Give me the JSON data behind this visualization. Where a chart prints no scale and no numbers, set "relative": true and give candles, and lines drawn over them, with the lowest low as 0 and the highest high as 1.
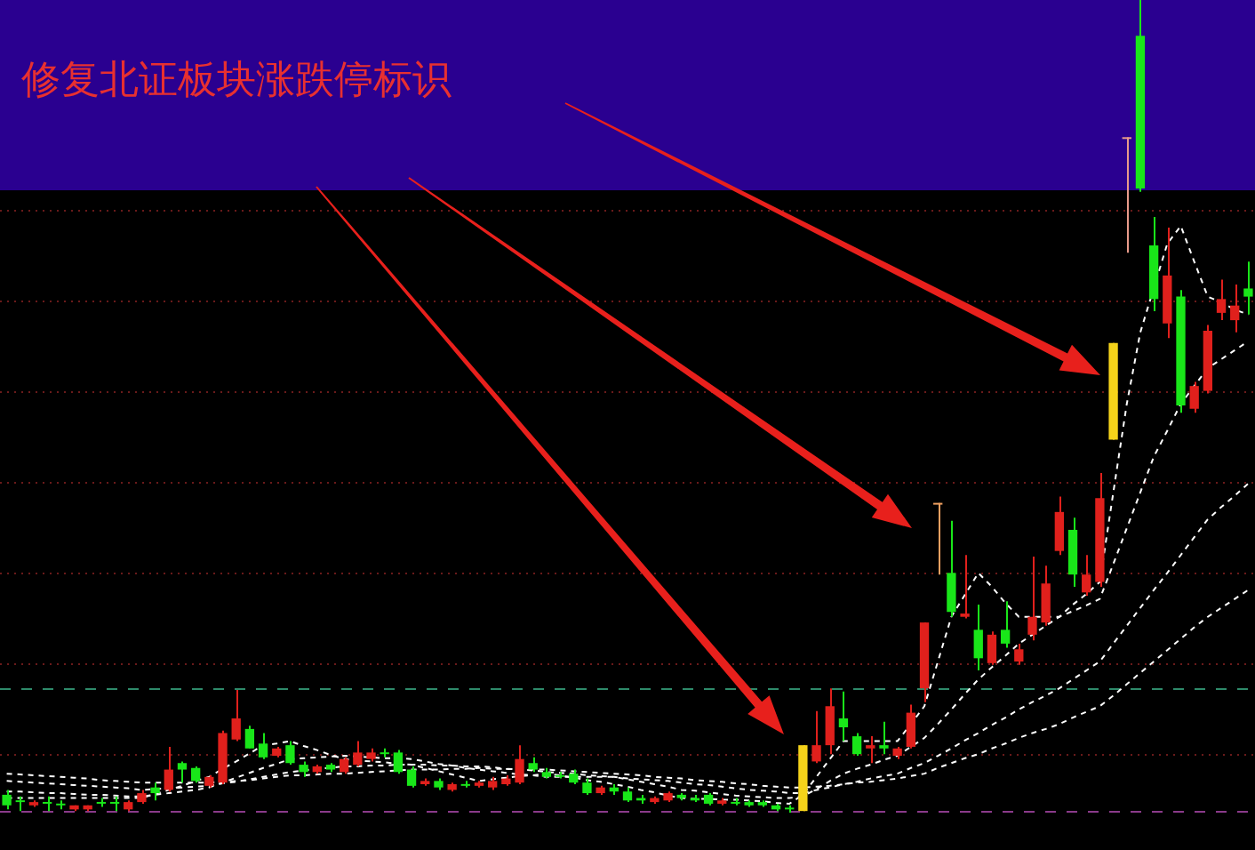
{
  "chart_data": {
    "type": "candlestick",
    "title": "修复北证板块涨跌停标识",
    "relative": true,
    "marker": "none",
    "categories": [
      null,
      null,
      null,
      null,
      null,
      null,
      null,
      null,
      null,
      null,
      null,
      null,
      null,
      null,
      null,
      null,
      null,
      null,
      null,
      null,
      null,
      null,
      null,
      null,
      null,
      null,
      null,
      null,
      null,
      null,
      null,
      null,
      null,
      null,
      null,
      null,
      null,
      null,
      null,
      null,
      null,
      null,
      null,
      null,
      null,
      null,
      null,
      null,
      null,
      null,
      null,
      null,
      null,
      null,
      null,
      null,
      null,
      null,
      null,
      null,
      null,
      null,
      null,
      null,
      null,
      null,
      null,
      null,
      null,
      null,
      null,
      null,
      null,
      null,
      null,
      null,
      null,
      null,
      null,
      null,
      null,
      null,
      null,
      null,
      null,
      null,
      null,
      null,
      null,
      null,
      null,
      null,
      null
    ],
    "ohlc": [
      [
        0.022,
        0.028,
        0.004,
        0.009
      ],
      [
        0.015,
        0.02,
        0.002,
        0.013
      ],
      [
        0.009,
        0.015,
        0.007,
        0.013
      ],
      [
        0.013,
        0.02,
        0.002,
        0.011
      ],
      [
        0.011,
        0.015,
        0.004,
        0.009
      ],
      [
        0.004,
        0.009,
        0.002,
        0.009
      ],
      [
        0.004,
        0.009,
        0.002,
        0.009
      ],
      [
        0.013,
        0.018,
        0.007,
        0.011
      ],
      [
        0.013,
        0.02,
        0.002,
        0.011
      ],
      [
        0.004,
        0.015,
        0.002,
        0.013
      ],
      [
        0.013,
        0.028,
        0.011,
        0.024
      ],
      [
        0.031,
        0.037,
        0.015,
        0.024
      ],
      [
        0.028,
        0.081,
        0.026,
        0.053
      ],
      [
        0.061,
        0.063,
        0.037,
        0.053
      ],
      [
        0.055,
        0.057,
        0.037,
        0.039
      ],
      [
        0.033,
        0.046,
        0.031,
        0.044
      ],
      [
        0.037,
        0.101,
        0.035,
        0.098
      ],
      [
        0.09,
        0.151,
        0.088,
        0.116
      ],
      [
        0.103,
        0.107,
        0.079,
        0.079
      ],
      [
        0.085,
        0.098,
        0.066,
        0.068
      ],
      [
        0.07,
        0.081,
        0.068,
        0.079
      ],
      [
        0.083,
        0.088,
        0.059,
        0.061
      ],
      [
        0.059,
        0.063,
        0.044,
        0.05
      ],
      [
        0.05,
        0.059,
        0.048,
        0.057
      ],
      [
        0.059,
        0.061,
        0.05,
        0.053
      ],
      [
        0.05,
        0.068,
        0.048,
        0.066
      ],
      [
        0.059,
        0.088,
        0.057,
        0.074
      ],
      [
        0.066,
        0.079,
        0.063,
        0.074
      ],
      [
        0.074,
        0.079,
        0.068,
        0.072
      ],
      [
        0.074,
        0.077,
        0.048,
        0.05
      ],
      [
        0.053,
        0.057,
        0.031,
        0.033
      ],
      [
        0.035,
        0.042,
        0.033,
        0.039
      ],
      [
        0.039,
        0.042,
        0.028,
        0.031
      ],
      [
        0.028,
        0.037,
        0.026,
        0.035
      ],
      [
        0.035,
        0.039,
        0.031,
        0.033
      ],
      [
        0.033,
        0.039,
        0.031,
        0.037
      ],
      [
        0.031,
        0.044,
        0.028,
        0.039
      ],
      [
        0.035,
        0.046,
        0.033,
        0.042
      ],
      [
        0.037,
        0.083,
        0.035,
        0.066
      ],
      [
        0.061,
        0.068,
        0.05,
        0.053
      ],
      [
        0.05,
        0.055,
        0.042,
        0.044
      ],
      [
        0.046,
        0.05,
        0.042,
        0.044
      ],
      [
        0.048,
        0.053,
        0.035,
        0.037
      ],
      [
        0.037,
        0.042,
        0.022,
        0.024
      ],
      [
        0.024,
        0.033,
        0.022,
        0.031
      ],
      [
        0.031,
        0.035,
        0.022,
        0.026
      ],
      [
        0.026,
        0.031,
        0.013,
        0.015
      ],
      [
        0.018,
        0.022,
        0.011,
        0.015
      ],
      [
        0.013,
        0.02,
        0.011,
        0.018
      ],
      [
        0.015,
        0.026,
        0.013,
        0.024
      ],
      [
        0.022,
        0.024,
        0.015,
        0.018
      ],
      [
        0.018,
        0.022,
        0.013,
        0.015
      ],
      [
        0.022,
        0.024,
        0.009,
        0.011
      ],
      [
        0.011,
        0.018,
        0.009,
        0.015
      ],
      [
        0.013,
        0.018,
        0.009,
        0.011
      ],
      [
        0.013,
        0.015,
        0.007,
        0.009
      ],
      [
        0.013,
        0.015,
        0.007,
        0.009
      ],
      [
        0.009,
        0.011,
        0.002,
        0.004
      ],
      [
        0.004,
        0.009,
        0,
        0.004
      ],
      [
        0.002,
        0.083,
        0.002,
        0.083
      ],
      [
        0.063,
        0.125,
        0.061,
        0.083
      ],
      [
        0.083,
        0.153,
        0.072,
        0.131
      ],
      [
        0.116,
        0.149,
        0.088,
        0.105
      ],
      [
        0.094,
        0.098,
        0.07,
        0.072
      ],
      [
        0.079,
        0.094,
        0.061,
        0.083
      ],
      [
        0.083,
        0.112,
        0.072,
        0.079
      ],
      [
        0.07,
        0.081,
        0.066,
        0.079
      ],
      [
        0.081,
        0.133,
        0.079,
        0.123
      ],
      [
        0.153,
        0.234,
        0.136,
        0.234
      ],
      [
        0.379,
        0.381,
        0.293,
        0.381
      ],
      [
        0.295,
        0.359,
        0.241,
        0.247
      ],
      [
        0.241,
        0.317,
        0.239,
        0.245
      ],
      [
        0.225,
        0.256,
        0.175,
        0.19
      ],
      [
        0.184,
        0.223,
        0.182,
        0.219
      ],
      [
        0.225,
        0.26,
        0.203,
        0.208
      ],
      [
        0.186,
        0.208,
        0.182,
        0.201
      ],
      [
        0.219,
        0.315,
        0.212,
        0.241
      ],
      [
        0.234,
        0.304,
        0.23,
        0.282
      ],
      [
        0.322,
        0.389,
        0.317,
        0.37
      ],
      [
        0.348,
        0.363,
        0.278,
        0.293
      ],
      [
        0.271,
        0.317,
        0.267,
        0.293
      ],
      [
        0.284,
        0.418,
        0.278,
        0.387
      ],
      [
        0.459,
        0.578,
        0.459,
        0.578
      ],
      [
        0.829,
        0.831,
        0.689,
        0.831
      ],
      [
        0.956,
        1,
        0.764,
        0.768
      ],
      [
        0.698,
        0.733,
        0.617,
        0.632
      ],
      [
        0.602,
        0.72,
        0.584,
        0.661
      ],
      [
        0.635,
        0.643,
        0.492,
        0.501
      ],
      [
        0.497,
        0.53,
        0.492,
        0.525
      ],
      [
        0.519,
        0.6,
        0.516,
        0.593
      ],
      [
        0.615,
        0.656,
        0.606,
        0.632
      ],
      [
        0.606,
        0.65,
        0.591,
        0.624
      ],
      [
        0.645,
        0.678,
        0.613,
        0.635
      ]
    ],
    "colors": [
      "#19e619",
      "#19e619",
      "#e0201c",
      "#19e619",
      "#19e619",
      "#e0201c",
      "#e0201c",
      "#19e619",
      "#19e619",
      "#e0201c",
      "#e0201c",
      "#19e619",
      "#e0201c",
      "#19e619",
      "#19e619",
      "#e0201c",
      "#e0201c",
      "#e0201c",
      "#19e619",
      "#19e619",
      "#e0201c",
      "#19e619",
      "#19e619",
      "#e0201c",
      "#19e619",
      "#e0201c",
      "#e0201c",
      "#e0201c",
      "#19e619",
      "#19e619",
      "#19e619",
      "#e0201c",
      "#19e619",
      "#e0201c",
      "#19e619",
      "#e0201c",
      "#e0201c",
      "#e0201c",
      "#e0201c",
      "#19e619",
      "#19e619",
      "#19e619",
      "#19e619",
      "#19e619",
      "#e0201c",
      "#19e619",
      "#19e619",
      "#19e619",
      "#e0201c",
      "#e0201c",
      "#19e619",
      "#19e619",
      "#19e619",
      "#e0201c",
      "#19e619",
      "#19e619",
      "#19e619",
      "#19e619",
      "#19e619",
      "#f5d31a",
      "#e0201c",
      "#e0201c",
      "#19e619",
      "#19e619",
      "#e0201c",
      "#19e619",
      "#e0201c",
      "#e0201c",
      "#e0201c",
      "#f0a060",
      "#19e619",
      "#e0201c",
      "#19e619",
      "#e0201c",
      "#19e619",
      "#e0201c",
      "#e0201c",
      "#e0201c",
      "#e0201c",
      "#19e619",
      "#e0201c",
      "#e0201c",
      "#f5d31a",
      "#e89a8a",
      "#19e619",
      "#19e619",
      "#e0201c",
      "#19e619",
      "#e0201c",
      "#e0201c",
      "#e0201c",
      "#e0201c",
      "#19e619"
    ],
    "series": [
      {
        "type": "line",
        "color": "#ffffff",
        "line_style": "dashed",
        "values": [
          0.018,
          0.018,
          0.018,
          0.018,
          0.018,
          0.018,
          0.018,
          0.018,
          0.018,
          0.018,
          0.018,
          0.023,
          0.028,
          0.033,
          0.039,
          0.044,
          0.054,
          0.063,
          0.073,
          0.083,
          0.085,
          0.088,
          0.082,
          0.077,
          0.071,
          0.066,
          0.064,
          0.063,
          0.062,
          0.06,
          0.059,
          0.055,
          0.051,
          0.047,
          0.043,
          0.039,
          0.041,
          0.043,
          0.045,
          0.046,
          0.048,
          0.046,
          0.043,
          0.04,
          0.038,
          0.035,
          0.032,
          0.028,
          0.025,
          0.021,
          0.018,
          0.017,
          0.017,
          0.016,
          0.016,
          0.015,
          0.014,
          0.012,
          0.011,
          0.022,
          0.044,
          0.066,
          0.088,
          0.088,
          0.088,
          0.088,
          0.088,
          0.109,
          0.131,
          0.186,
          0.241,
          0.268,
          0.295,
          0.278,
          0.258,
          0.241,
          0.241,
          0.241,
          0.241,
          0.256,
          0.269,
          0.284,
          0.394,
          0.503,
          0.591,
          null,
          0.7,
          0.722,
          0.678,
          0.635,
          0.628,
          0.619,
          0.613
        ]
      },
      {
        "type": "line",
        "color": "#ffffff",
        "line_style": "dashed",
        "values": [
          0.026,
          0.026,
          0.025,
          0.024,
          0.024,
          0.023,
          0.022,
          0.022,
          0.021,
          0.02,
          0.02,
          0.022,
          0.024,
          0.026,
          0.028,
          0.031,
          0.037,
          0.043,
          0.049,
          0.055,
          0.06,
          0.066,
          0.067,
          0.068,
          0.069,
          0.07,
          0.069,
          0.068,
          0.067,
          0.067,
          0.066,
          0.063,
          0.06,
          0.058,
          0.055,
          0.053,
          0.051,
          0.049,
          0.047,
          0.046,
          0.044,
          0.044,
          0.044,
          0.044,
          0.044,
          0.044,
          0.041,
          0.038,
          0.035,
          0.032,
          0.028,
          0.027,
          0.025,
          0.023,
          0.021,
          0.02,
          0.019,
          0.018,
          0.018,
          0.02,
          0.029,
          0.039,
          0.048,
          0.054,
          0.059,
          0.065,
          0.07,
          0.081,
          0.092,
          0.109,
          0.127,
          0.146,
          0.164,
          0.179,
          0.193,
          0.208,
          0.219,
          0.23,
          0.241,
          0.248,
          0.255,
          0.263,
          0.306,
          0.35,
          0.394,
          0.438,
          0.47,
          0.503,
          0.525,
          0.547,
          0.558,
          0.569,
          0.58
        ]
      },
      {
        "type": "line",
        "color": "#ffffff",
        "line_style": "dashed",
        "values": [
          0.039,
          0.038,
          0.037,
          0.036,
          0.035,
          0.034,
          0.033,
          0.032,
          0.031,
          0.03,
          0.028,
          0.029,
          0.03,
          0.031,
          0.032,
          0.033,
          0.036,
          0.038,
          0.041,
          0.044,
          0.047,
          0.05,
          0.052,
          0.054,
          0.055,
          0.057,
          0.057,
          0.058,
          0.058,
          0.059,
          0.059,
          0.059,
          0.058,
          0.058,
          0.057,
          0.057,
          0.056,
          0.054,
          0.053,
          0.052,
          0.05,
          0.049,
          0.048,
          0.046,
          0.045,
          0.044,
          0.042,
          0.041,
          0.04,
          0.039,
          0.037,
          0.035,
          0.034,
          0.032,
          0.03,
          0.028,
          0.027,
          0.026,
          0.024,
          0.024,
          0.028,
          0.031,
          0.035,
          0.038,
          0.042,
          0.045,
          0.048,
          0.055,
          0.061,
          0.07,
          0.079,
          0.089,
          0.098,
          0.108,
          0.117,
          0.127,
          0.136,
          0.144,
          0.153,
          0.164,
          0.175,
          0.186,
          0.208,
          0.23,
          0.252,
          0.274,
          0.295,
          0.317,
          0.339,
          0.361,
          0.376,
          0.39,
          0.405
        ]
      },
      {
        "type": "line",
        "color": "#ffffff",
        "line_style": "dashed",
        "values": [
          0.048,
          0.047,
          0.046,
          0.045,
          0.044,
          0.043,
          0.042,
          0.04,
          0.039,
          0.038,
          0.037,
          0.037,
          0.037,
          0.037,
          0.037,
          0.037,
          0.038,
          0.039,
          0.04,
          0.042,
          0.044,
          0.046,
          0.046,
          0.047,
          0.048,
          0.048,
          0.049,
          0.05,
          0.051,
          0.052,
          0.053,
          0.053,
          0.053,
          0.054,
          0.054,
          0.055,
          0.054,
          0.054,
          0.053,
          0.053,
          0.053,
          0.052,
          0.051,
          0.05,
          0.049,
          0.048,
          0.047,
          0.046,
          0.044,
          0.043,
          0.042,
          0.04,
          0.039,
          0.038,
          0.036,
          0.035,
          0.033,
          0.032,
          0.031,
          0.031,
          0.032,
          0.033,
          0.035,
          0.037,
          0.038,
          0.04,
          0.042,
          0.045,
          0.048,
          0.055,
          0.061,
          0.067,
          0.072,
          0.079,
          0.085,
          0.092,
          0.098,
          0.103,
          0.109,
          0.117,
          0.124,
          0.131,
          0.144,
          0.158,
          0.172,
          0.186,
          0.2,
          0.214,
          0.228,
          0.241,
          0.252,
          0.263,
          0.274
        ]
      }
    ],
    "ref_lines": [
      {
        "axis": "y",
        "value": 0.072,
        "color": "#6a1a1a",
        "line_style": "dotted"
      },
      {
        "axis": "y",
        "value": 0.184,
        "color": "#6a1a1a",
        "line_style": "dotted"
      },
      {
        "axis": "y",
        "value": 0.295,
        "color": "#6a1a1a",
        "line_style": "dotted"
      },
      {
        "axis": "y",
        "value": 0.407,
        "color": "#6a1a1a",
        "line_style": "dotted"
      },
      {
        "axis": "y",
        "value": 0.519,
        "color": "#6a1a1a",
        "line_style": "dotted"
      },
      {
        "axis": "y",
        "value": 0.63,
        "color": "#6a1a1a",
        "line_style": "dotted"
      },
      {
        "axis": "y",
        "value": 0.742,
        "color": "#6a1a1a",
        "line_style": "dotted"
      },
      {
        "axis": "y",
        "value": 0.153,
        "color": "#2e8a6a",
        "line_style": "dashed"
      },
      {
        "axis": "y",
        "value": 0.002,
        "color": "#8a3a8a",
        "line_style": "dashed"
      }
    ]
  }
}
